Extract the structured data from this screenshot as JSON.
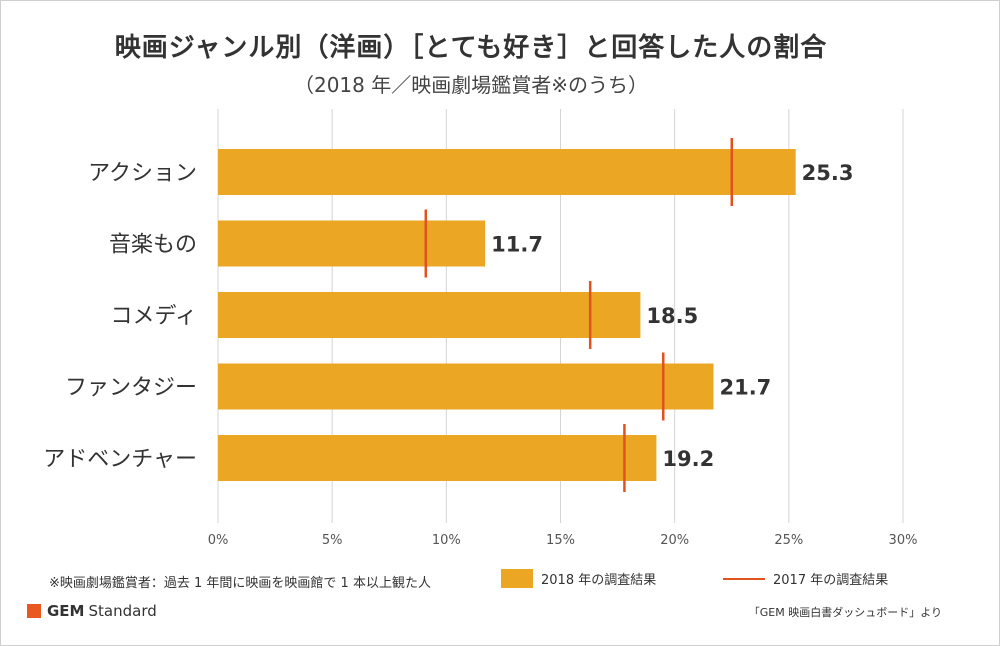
{
  "title": "映画ジャンル別（洋画）［とても好き］と回答した人の割合",
  "subtitle": "（2018 年／映画劇場鑑賞者※のうち）",
  "footnote": "※映画劇場鑑賞者：過去 1 年間に映画を映画館で 1 本以上観た人",
  "source": "「GEM 映画白書ダッシュボード」より",
  "brand": {
    "name_bold": "GEM",
    "name_rest": "Standard"
  },
  "colors": {
    "bar": "#EBA624",
    "marker": "#E0531F",
    "grid": "#d4d4d4",
    "brand": "#E9581F"
  },
  "chart_data": {
    "type": "bar",
    "orientation": "horizontal",
    "categories": [
      "アクション",
      "音楽もの",
      "コメディ",
      "ファンタジー",
      "アドベンチャー"
    ],
    "series": [
      {
        "name": "2018 年の調査結果",
        "kind": "bar",
        "values": [
          25.3,
          11.7,
          18.5,
          21.7,
          19.2
        ]
      },
      {
        "name": "2017 年の調査結果",
        "kind": "marker",
        "values": [
          22.5,
          9.1,
          16.3,
          19.5,
          17.8
        ]
      }
    ],
    "data_labels": [
      "25.3",
      "11.7",
      "18.5",
      "21.7",
      "19.2"
    ],
    "xlim": [
      0,
      30
    ],
    "xticks": [
      0,
      5,
      10,
      15,
      20,
      25,
      30
    ],
    "xtick_labels": [
      "0%",
      "5%",
      "10%",
      "15%",
      "20%",
      "25%",
      "30%"
    ],
    "grid": true,
    "legend_position": "bottom"
  }
}
